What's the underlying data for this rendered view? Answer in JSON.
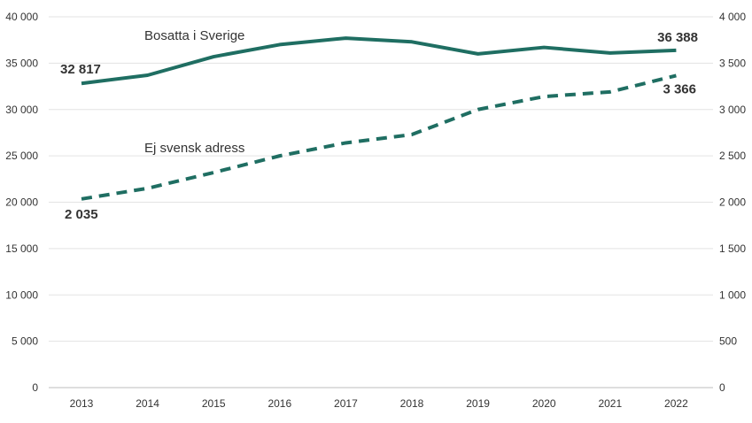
{
  "chart_data": {
    "type": "line",
    "title": "",
    "xlabel": "",
    "ylabel": "",
    "categories": [
      "2013",
      "2014",
      "2015",
      "2016",
      "2017",
      "2018",
      "2019",
      "2020",
      "2021",
      "2022"
    ],
    "y_left": {
      "range": [
        0,
        40000
      ],
      "ticks": [
        0,
        5000,
        10000,
        15000,
        20000,
        25000,
        30000,
        35000,
        40000
      ],
      "tick_labels": [
        "0",
        "5 000",
        "10 000",
        "15 000",
        "20 000",
        "25 000",
        "30 000",
        "35 000",
        "40 000"
      ]
    },
    "y_right": {
      "range": [
        0,
        4000
      ],
      "ticks": [
        0,
        500,
        1000,
        1500,
        2000,
        2500,
        3000,
        3500,
        4000
      ],
      "tick_labels": [
        "0",
        "500",
        "1 000",
        "1 500",
        "2 000",
        "2 500",
        "3 000",
        "3 500",
        "4 000"
      ]
    },
    "grid": true,
    "series": [
      {
        "name": "Bosatta i Sverige",
        "axis": "left",
        "style": "solid",
        "color": "#1f6e62",
        "values": [
          32817,
          33700,
          35700,
          37000,
          37700,
          37300,
          36000,
          36700,
          36100,
          36388
        ],
        "start_label": "32 817",
        "end_label": "36 388"
      },
      {
        "name": "Ej svensk adress",
        "axis": "right",
        "style": "dashed",
        "color": "#1f6e62",
        "values": [
          2035,
          2150,
          2320,
          2500,
          2640,
          2730,
          3000,
          3140,
          3190,
          3366
        ],
        "start_label": "2 035",
        "end_label": "3 366"
      }
    ]
  }
}
